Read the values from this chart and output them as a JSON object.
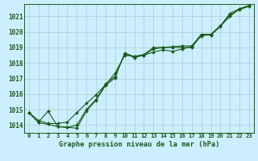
{
  "title": "Graphe pression niveau de la mer (hPa)",
  "bg_color": "#cceeff",
  "grid_color": "#aacccc",
  "line_color": "#1a5c1a",
  "xlim": [
    -0.5,
    23.5
  ],
  "ylim": [
    1013.5,
    1021.8
  ],
  "xtick_labels": [
    "0",
    "1",
    "2",
    "3",
    "4",
    "5",
    "6",
    "7",
    "8",
    "9",
    "10",
    "11",
    "12",
    "13",
    "14",
    "15",
    "16",
    "17",
    "18",
    "19",
    "20",
    "21",
    "22",
    "23"
  ],
  "yticks": [
    1014,
    1015,
    1016,
    1017,
    1018,
    1019,
    1020,
    1021
  ],
  "series": [
    [
      1014.8,
      1014.2,
      1014.9,
      1013.9,
      1013.85,
      1013.8,
      1014.9,
      1015.6,
      1016.55,
      1017.05,
      1018.65,
      1018.4,
      1018.55,
      1019.0,
      1019.0,
      1019.05,
      1019.1,
      1019.1,
      1019.85,
      1019.85,
      1020.4,
      1021.2,
      1021.5,
      1021.7
    ],
    [
      1014.8,
      1014.3,
      1014.1,
      1014.1,
      1014.2,
      1014.8,
      1015.4,
      1015.95,
      1016.6,
      1017.35,
      1018.5,
      1018.45,
      1018.5,
      1018.7,
      1018.85,
      1018.75,
      1018.9,
      1019.05,
      1019.75,
      1019.85,
      1020.4,
      1021.0,
      1021.5,
      1021.7
    ],
    [
      1014.8,
      1014.15,
      1014.05,
      1013.9,
      1013.85,
      1014.0,
      1015.0,
      1015.65,
      1016.65,
      1017.15,
      1018.6,
      1018.35,
      1018.5,
      1018.9,
      1019.0,
      1019.0,
      1019.0,
      1019.0,
      1019.8,
      1019.8,
      1020.35,
      1021.1,
      1021.45,
      1021.65
    ]
  ]
}
